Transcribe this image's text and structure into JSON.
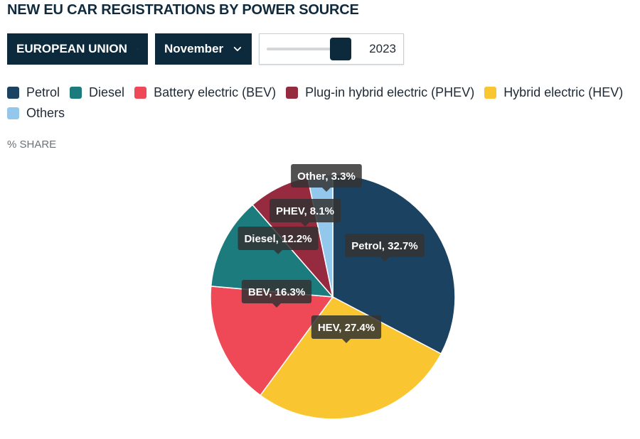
{
  "title": "NEW EU CAR REGISTRATIONS BY POWER SOURCE",
  "controls": {
    "region": "EUROPEAN UNION",
    "month": "November",
    "year": "2023",
    "year_slider_position": 0.85
  },
  "legend": [
    {
      "label": "Petrol",
      "color": "#1b4260"
    },
    {
      "label": "Diesel",
      "color": "#1c7b7d"
    },
    {
      "label": "Battery electric (BEV)",
      "color": "#ef4856"
    },
    {
      "label": "Plug-in hybrid electric (PHEV)",
      "color": "#962b40"
    },
    {
      "label": "Hybrid electric (HEV)",
      "color": "#f9c531"
    },
    {
      "label": "Others",
      "color": "#93c8ec"
    }
  ],
  "unit_label": "% SHARE",
  "chart_data": {
    "type": "pie",
    "slices": [
      {
        "name": "Petrol",
        "label": "Petrol, 32.7%",
        "value": 32.7,
        "color": "#1b4260"
      },
      {
        "name": "HEV",
        "label": "HEV, 27.4%",
        "value": 27.4,
        "color": "#f9c531"
      },
      {
        "name": "BEV",
        "label": "BEV, 16.3%",
        "value": 16.3,
        "color": "#ef4856"
      },
      {
        "name": "Diesel",
        "label": "Diesel, 12.2%",
        "value": 12.2,
        "color": "#1c7b7d"
      },
      {
        "name": "PHEV",
        "label": "PHEV, 8.1%",
        "value": 8.1,
        "color": "#962b40"
      },
      {
        "name": "Other",
        "label": "Other, 3.3%",
        "value": 3.3,
        "color": "#93c8ec"
      }
    ],
    "start_angle_deg": 0,
    "direction": "clockwise"
  }
}
